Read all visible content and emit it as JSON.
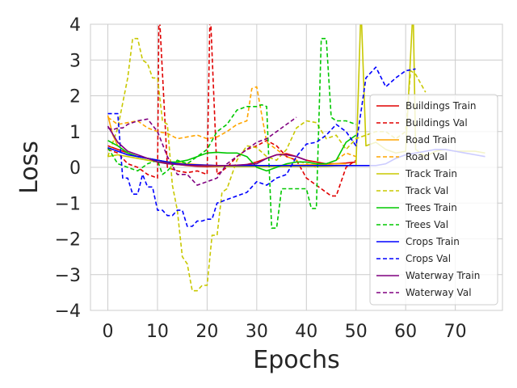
{
  "chart_data": {
    "type": "line",
    "title": "",
    "xlabel": "Epochs",
    "ylabel": "Loss",
    "xlim": [
      -3.5,
      79.5
    ],
    "ylim": [
      -4,
      4
    ],
    "xticks": [
      0,
      10,
      20,
      30,
      40,
      50,
      60,
      70
    ],
    "yticks": [
      -4,
      -3,
      -2,
      -1,
      0,
      1,
      2,
      3,
      4
    ],
    "xtick_labels": [
      "0",
      "10",
      "20",
      "30",
      "40",
      "50",
      "60",
      "70"
    ],
    "ytick_labels": [
      "−4",
      "−3",
      "−2",
      "−1",
      "0",
      "1",
      "2",
      "3",
      "4"
    ],
    "grid": true,
    "legend_position": "center-right",
    "series": [
      {
        "name": "Buildings Train",
        "color": "#e00000",
        "dash": "solid",
        "x": [
          0,
          2,
          4,
          6,
          8,
          10,
          12,
          14,
          16,
          18,
          20,
          22,
          24,
          26,
          28,
          30,
          32,
          34,
          36,
          38,
          40,
          42,
          44,
          46,
          48,
          50
        ],
        "y": [
          0.6,
          0.5,
          0.4,
          0.3,
          0.25,
          0.2,
          0.12,
          0.08,
          0.05,
          0.03,
          0.02,
          0.02,
          0.03,
          0.05,
          0.08,
          0.15,
          0.25,
          0.35,
          0.38,
          0.3,
          0.2,
          0.15,
          0.1,
          0.1,
          0.12,
          0.15
        ]
      },
      {
        "name": "Buildings Val",
        "color": "#e00000",
        "dash": "dashed",
        "x": [
          0,
          2,
          4,
          6,
          8,
          10,
          10.3,
          12,
          14,
          16,
          18,
          20,
          20.6,
          22,
          24,
          26,
          28,
          30,
          32,
          34,
          36,
          38,
          40,
          42,
          44,
          45,
          46,
          48,
          50
        ],
        "y": [
          0.5,
          0.4,
          0.1,
          0.0,
          -0.2,
          -0.3,
          4.5,
          0.0,
          -0.1,
          -0.15,
          -0.1,
          -0.2,
          4.5,
          -0.2,
          0.0,
          0.3,
          0.5,
          0.6,
          0.75,
          0.6,
          0.3,
          0.2,
          -0.3,
          -0.5,
          -0.7,
          -0.8,
          -0.8,
          0.0,
          0.2
        ]
      },
      {
        "name": "Road Train",
        "color": "#ffa500",
        "dash": "solid",
        "x": [
          0,
          1,
          2,
          4,
          6,
          8,
          10,
          12,
          14,
          16,
          18,
          20,
          22,
          24,
          26,
          28,
          30,
          32,
          34,
          36,
          38,
          40,
          42,
          44,
          46,
          48
        ],
        "y": [
          1.45,
          0.9,
          0.6,
          0.4,
          0.3,
          0.25,
          0.2,
          0.15,
          0.12,
          0.1,
          0.08,
          0.06,
          0.05,
          0.05,
          0.05,
          0.06,
          0.05,
          0.05,
          0.05,
          0.06,
          0.06,
          0.07,
          0.08,
          0.08,
          0.1,
          0.1
        ]
      },
      {
        "name": "Road Val",
        "color": "#ffa500",
        "dash": "dashed",
        "x": [
          0,
          2,
          4,
          6,
          8,
          10,
          12,
          14,
          16,
          18,
          20,
          22,
          24,
          26,
          28,
          29,
          30,
          32,
          34,
          36,
          38,
          40,
          42,
          44,
          46,
          48,
          50
        ],
        "y": [
          1.4,
          1.2,
          1.25,
          1.3,
          1.1,
          1.0,
          0.95,
          0.8,
          0.85,
          0.9,
          0.8,
          0.85,
          1.0,
          1.2,
          1.3,
          2.2,
          2.25,
          0.7,
          0.5,
          0.3,
          0.2,
          0.1,
          0.0,
          0.1,
          0.2,
          0.4,
          0.3
        ]
      },
      {
        "name": "Track Train",
        "color": "#c8c800",
        "dash": "solid",
        "x": [
          0,
          2,
          4,
          6,
          8,
          10,
          12,
          14,
          16,
          18,
          20,
          22,
          24,
          26,
          28,
          30,
          32,
          34,
          36,
          38,
          40,
          42,
          44,
          46,
          48,
          50,
          51,
          52,
          54,
          56,
          58,
          60,
          61.5,
          62,
          64,
          66,
          68,
          70,
          72,
          74,
          76
        ],
        "y": [
          0.3,
          0.35,
          0.3,
          0.25,
          0.2,
          0.15,
          0.1,
          0.08,
          0.06,
          0.05,
          0.04,
          0.03,
          0.02,
          0.02,
          0.02,
          0.02,
          0.02,
          0.02,
          0.02,
          0.03,
          0.03,
          0.03,
          0.03,
          0.04,
          0.05,
          0.05,
          4.5,
          0.6,
          0.7,
          0.5,
          0.4,
          0.45,
          4.5,
          0.5,
          0.3,
          0.45,
          0.5,
          0.45,
          0.45,
          0.45,
          0.4
        ]
      },
      {
        "name": "Track Val",
        "color": "#c8c800",
        "dash": "dashed",
        "x": [
          0,
          2,
          4,
          5,
          6,
          7,
          8,
          9,
          10,
          11,
          12,
          13,
          14,
          15,
          16,
          17,
          18,
          19,
          20,
          21,
          22,
          23,
          24,
          26,
          28,
          30,
          32,
          34,
          36,
          38,
          40,
          42,
          44,
          46,
          48,
          50,
          52,
          54,
          56,
          58,
          60,
          61,
          62,
          64
        ],
        "y": [
          0.3,
          1.1,
          2.5,
          3.6,
          3.6,
          3.0,
          2.9,
          2.5,
          2.5,
          1.3,
          1.2,
          -0.5,
          -1.2,
          -2.5,
          -2.7,
          -3.45,
          -3.45,
          -3.3,
          -3.3,
          -1.9,
          -1.9,
          -0.7,
          -0.6,
          0.2,
          0.6,
          0.55,
          0.3,
          0.2,
          0.5,
          1.1,
          1.3,
          1.25,
          0.8,
          0.9,
          0.5,
          0.8,
          0.9,
          1.0,
          1.0,
          0.8,
          1.0,
          2.7,
          2.6,
          2.1
        ]
      },
      {
        "name": "Trees Train",
        "color": "#00c800",
        "dash": "solid",
        "x": [
          0,
          2,
          4,
          6,
          8,
          10,
          12,
          14,
          16,
          18,
          20,
          22,
          24,
          26,
          28,
          30,
          32,
          34,
          36,
          38,
          40,
          42,
          44,
          46,
          48,
          50
        ],
        "y": [
          0.75,
          0.6,
          0.4,
          0.3,
          0.25,
          0.2,
          0.15,
          0.15,
          0.2,
          0.3,
          0.4,
          0.42,
          0.4,
          0.4,
          0.3,
          0.0,
          -0.1,
          0.0,
          0.1,
          0.15,
          0.15,
          0.1,
          0.1,
          0.2,
          0.7,
          0.9
        ]
      },
      {
        "name": "Trees Val",
        "color": "#00c800",
        "dash": "dashed",
        "x": [
          0,
          2,
          4,
          6,
          8,
          10,
          11,
          12,
          14,
          16,
          18,
          20,
          22,
          24,
          26,
          28,
          30,
          31,
          32,
          33,
          34,
          35,
          36,
          38,
          40,
          41,
          42,
          43,
          44,
          45,
          46,
          48,
          50
        ],
        "y": [
          0.55,
          0.1,
          0.0,
          -0.1,
          0.1,
          0.2,
          -0.2,
          -0.1,
          0.2,
          0.1,
          0.3,
          0.5,
          1.0,
          1.2,
          1.6,
          1.7,
          1.7,
          1.75,
          1.7,
          -1.7,
          -1.7,
          -0.6,
          -0.6,
          -0.6,
          -0.6,
          -1.15,
          -1.15,
          3.6,
          3.6,
          1.4,
          1.3,
          1.3,
          1.2
        ]
      },
      {
        "name": "Crops Train",
        "color": "#0000ff",
        "dash": "solid",
        "x": [
          0,
          2,
          4,
          6,
          8,
          10,
          12,
          14,
          16,
          18,
          20,
          22,
          24,
          26,
          28,
          30,
          32,
          34,
          36,
          38,
          40,
          42,
          44,
          46,
          48,
          50,
          52,
          54,
          56,
          58,
          60,
          62,
          64,
          66,
          68,
          70,
          72,
          74,
          76
        ],
        "y": [
          0.55,
          0.45,
          0.35,
          0.3,
          0.25,
          0.2,
          0.15,
          0.1,
          0.08,
          0.07,
          0.06,
          0.05,
          0.05,
          0.05,
          0.05,
          0.05,
          0.05,
          0.05,
          0.05,
          0.05,
          0.05,
          0.05,
          0.05,
          0.05,
          0.05,
          0.05,
          0.05,
          0.05,
          0.1,
          0.25,
          0.35,
          0.4,
          0.45,
          0.5,
          0.5,
          0.45,
          0.4,
          0.35,
          0.3
        ]
      },
      {
        "name": "Crops Val",
        "color": "#0000ff",
        "dash": "dashed",
        "x": [
          0,
          1,
          2,
          3,
          4,
          5,
          6,
          7,
          8,
          9,
          10,
          11,
          12,
          13,
          14,
          15,
          16,
          17,
          18,
          19,
          20,
          21,
          22,
          24,
          26,
          28,
          30,
          32,
          34,
          36,
          38,
          40,
          42,
          44,
          46,
          48,
          50,
          52,
          54,
          56,
          58,
          60,
          62
        ],
        "y": [
          1.5,
          1.5,
          1.5,
          -0.3,
          -0.3,
          -0.75,
          -0.75,
          -0.2,
          -0.55,
          -0.55,
          -1.2,
          -1.2,
          -1.35,
          -1.35,
          -1.2,
          -1.2,
          -1.65,
          -1.65,
          -1.5,
          -1.5,
          -1.45,
          -1.45,
          -1.0,
          -0.9,
          -0.8,
          -0.7,
          -0.4,
          -0.5,
          -0.3,
          -0.2,
          0.3,
          0.65,
          0.7,
          0.9,
          1.2,
          1.0,
          0.6,
          2.5,
          2.8,
          2.25,
          2.5,
          2.7,
          2.75
        ]
      },
      {
        "name": "Waterway Train",
        "color": "#800080",
        "dash": "solid",
        "x": [
          0,
          2,
          4,
          6,
          8,
          10,
          12,
          14,
          16,
          18,
          20,
          22,
          24,
          26,
          28,
          30,
          32,
          34,
          36,
          38,
          40
        ],
        "y": [
          1.15,
          0.7,
          0.45,
          0.35,
          0.25,
          0.15,
          0.1,
          0.08,
          0.06,
          0.05,
          0.05,
          0.05,
          0.05,
          0.06,
          0.08,
          0.1,
          0.25,
          0.35,
          0.35,
          0.3,
          0.2
        ]
      },
      {
        "name": "Waterway Val",
        "color": "#800080",
        "dash": "dashed",
        "x": [
          0,
          1,
          2,
          3,
          4,
          6,
          8,
          10,
          12,
          14,
          16,
          18,
          20,
          22,
          24,
          26,
          28,
          30,
          32,
          34,
          36,
          38
        ],
        "y": [
          1.1,
          1.05,
          1.1,
          1.1,
          1.2,
          1.3,
          1.35,
          1.0,
          0.3,
          -0.2,
          -0.2,
          -0.5,
          -0.4,
          -0.3,
          0.1,
          0.3,
          0.5,
          0.7,
          0.8,
          1.0,
          1.2,
          1.4
        ]
      }
    ]
  }
}
